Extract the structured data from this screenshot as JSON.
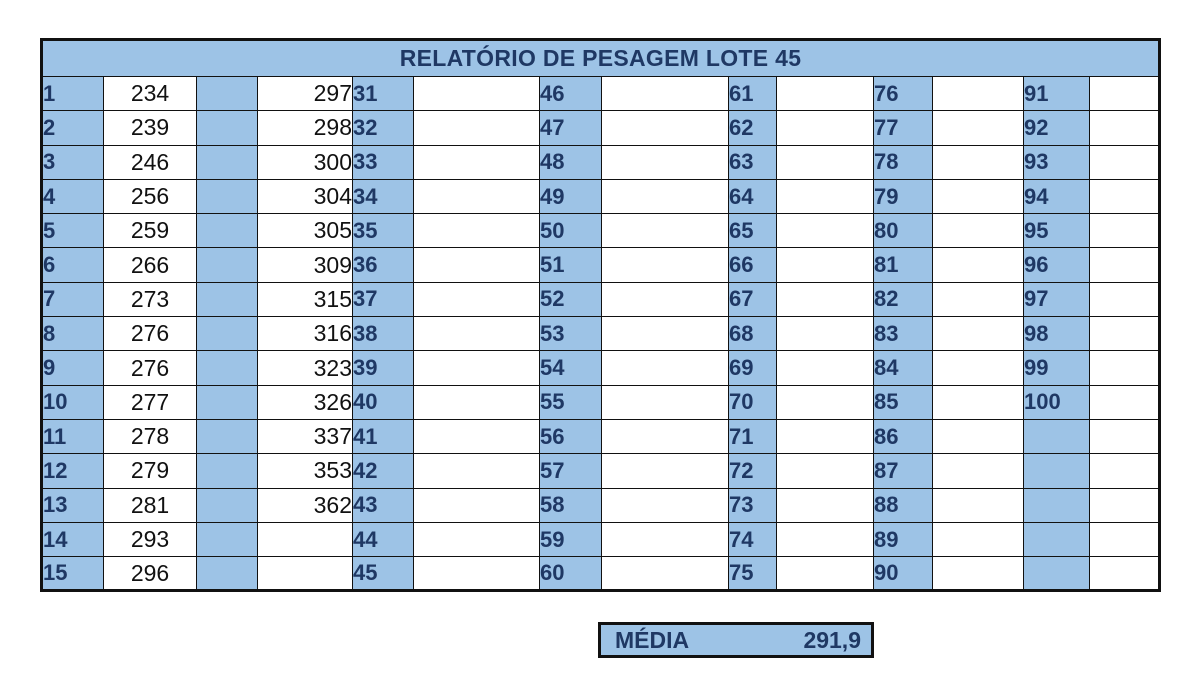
{
  "report": {
    "title": "RELATÓRIO DE PESAGEM LOTE 45",
    "media_label": "MÉDIA",
    "media_value": "291,9"
  },
  "rows": [
    {
      "c1": "1",
      "w1": "234",
      "c2": "",
      "w2": "297",
      "c3": "31",
      "c4": "46",
      "c5": "61",
      "c6": "76",
      "c7": "91"
    },
    {
      "c1": "2",
      "w1": "239",
      "c2": "",
      "w2": "298",
      "c3": "32",
      "c4": "47",
      "c5": "62",
      "c6": "77",
      "c7": "92"
    },
    {
      "c1": "3",
      "w1": "246",
      "c2": "",
      "w2": "300",
      "c3": "33",
      "c4": "48",
      "c5": "63",
      "c6": "78",
      "c7": "93"
    },
    {
      "c1": "4",
      "w1": "256",
      "c2": "",
      "w2": "304",
      "c3": "34",
      "c4": "49",
      "c5": "64",
      "c6": "79",
      "c7": "94"
    },
    {
      "c1": "5",
      "w1": "259",
      "c2": "",
      "w2": "305",
      "c3": "35",
      "c4": "50",
      "c5": "65",
      "c6": "80",
      "c7": "95"
    },
    {
      "c1": "6",
      "w1": "266",
      "c2": "",
      "w2": "309",
      "c3": "36",
      "c4": "51",
      "c5": "66",
      "c6": "81",
      "c7": "96"
    },
    {
      "c1": "7",
      "w1": "273",
      "c2": "",
      "w2": "315",
      "c3": "37",
      "c4": "52",
      "c5": "67",
      "c6": "82",
      "c7": "97"
    },
    {
      "c1": "8",
      "w1": "276",
      "c2": "",
      "w2": "316",
      "c3": "38",
      "c4": "53",
      "c5": "68",
      "c6": "83",
      "c7": "98"
    },
    {
      "c1": "9",
      "w1": "276",
      "c2": "",
      "w2": "323",
      "c3": "39",
      "c4": "54",
      "c5": "69",
      "c6": "84",
      "c7": "99"
    },
    {
      "c1": "10",
      "w1": "277",
      "c2": "",
      "w2": "326",
      "c3": "40",
      "c4": "55",
      "c5": "70",
      "c6": "85",
      "c7": "100"
    },
    {
      "c1": "11",
      "w1": "278",
      "c2": "",
      "w2": "337",
      "c3": "41",
      "c4": "56",
      "c5": "71",
      "c6": "86",
      "c7": ""
    },
    {
      "c1": "12",
      "w1": "279",
      "c2": "",
      "w2": "353",
      "c3": "42",
      "c4": "57",
      "c5": "72",
      "c6": "87",
      "c7": ""
    },
    {
      "c1": "13",
      "w1": "281",
      "c2": "",
      "w2": "362",
      "c3": "43",
      "c4": "58",
      "c5": "73",
      "c6": "88",
      "c7": ""
    },
    {
      "c1": "14",
      "w1": "293",
      "c2": "",
      "w2": "",
      "c3": "44",
      "c4": "59",
      "c5": "74",
      "c6": "89",
      "c7": ""
    },
    {
      "c1": "15",
      "w1": "296",
      "c2": "",
      "w2": "",
      "c3": "45",
      "c4": "60",
      "c5": "75",
      "c6": "90",
      "c7": ""
    }
  ]
}
